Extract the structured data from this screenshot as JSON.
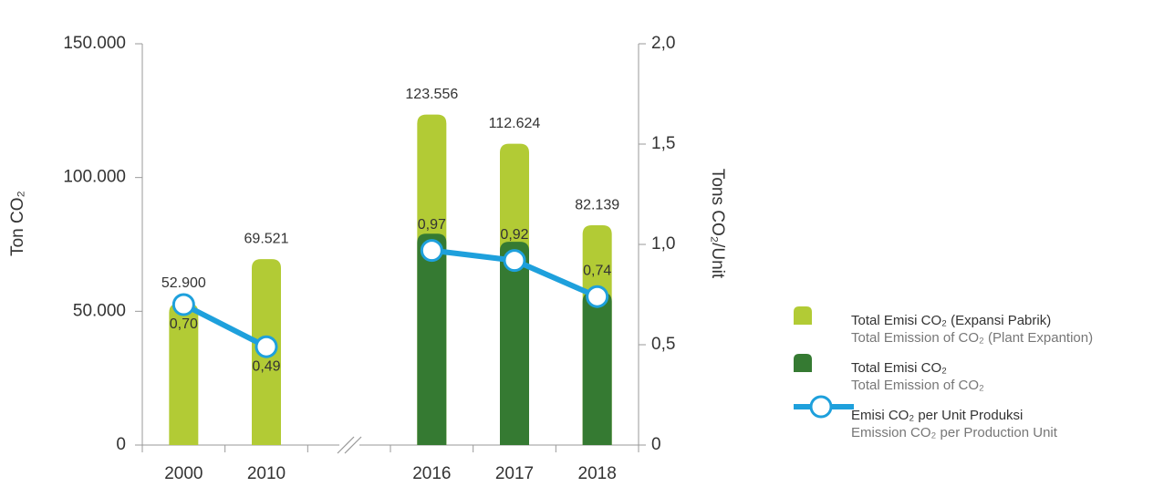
{
  "chart_data": {
    "type": "bar",
    "categories": [
      "2000",
      "2010",
      null,
      "2016",
      "2017",
      "2018"
    ],
    "ylabel": "Ton CO₂",
    "y2label": "Tons CO₂/Unit",
    "ylim": [
      0,
      150000
    ],
    "yticks": [
      0,
      {
        "value": 50000,
        "label": "50.000"
      },
      {
        "value": 100000,
        "label": "100.000"
      },
      {
        "value": 150000,
        "label": "150.000"
      }
    ],
    "y2lim": [
      0,
      2
    ],
    "y2ticks": [
      0,
      {
        "value": 0.5,
        "label": "0,5"
      },
      {
        "value": 1,
        "label": "1,0"
      },
      {
        "value": 1.5,
        "label": "1,5"
      },
      {
        "value": 2,
        "label": "2,0"
      }
    ],
    "series": [
      {
        "name": "Total Emisi CO₂ (Expansi Pabrik)",
        "subtitle": "Total Emission of CO₂ (Plant Expantion)",
        "type": "bar",
        "color": "#b2cb35",
        "values": [
          52900,
          69521,
          null,
          123556,
          112624,
          82139
        ],
        "value_labels": [
          "52.900",
          "69.521",
          null,
          "123.556",
          "112.624",
          "82.139"
        ]
      },
      {
        "name": "Total Emisi CO₂",
        "subtitle": "Total Emission of CO₂",
        "type": "bar",
        "color": "#357a32",
        "values": [
          null,
          null,
          null,
          79000,
          76000,
          57000
        ]
      },
      {
        "name": "Emisi CO₂ per Unit Produksi",
        "subtitle": "Emission CO₂ per Production Unit",
        "type": "line",
        "axis": "y2",
        "color": "#1ea0dc",
        "values": [
          0.7,
          0.49,
          null,
          0.97,
          0.92,
          0.74
        ],
        "value_labels": [
          "0,70",
          "0,49",
          null,
          "0,97",
          "0,92",
          "0,74"
        ]
      }
    ]
  }
}
